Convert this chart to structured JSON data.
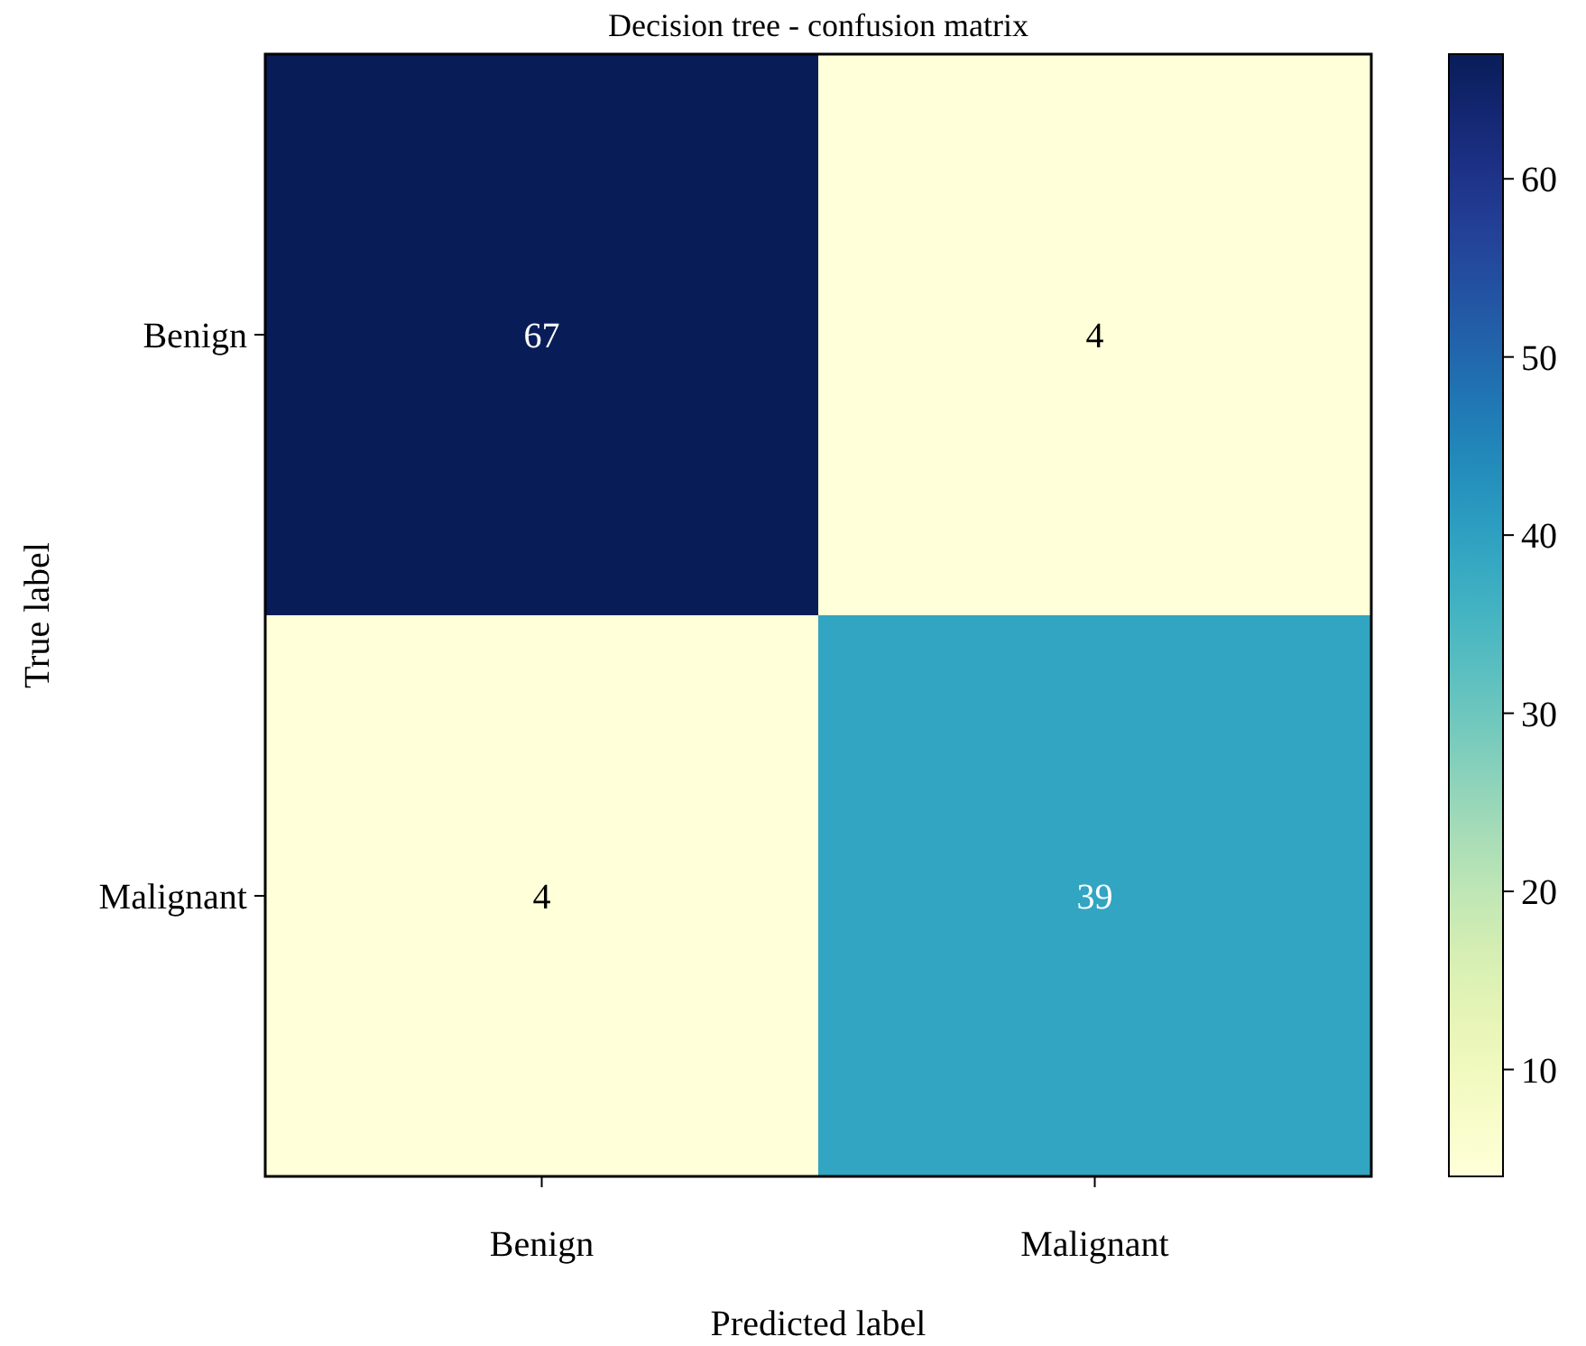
{
  "chart_data": {
    "type": "heatmap",
    "title": "Decision tree - confusion matrix",
    "xlabel": "Predicted label",
    "ylabel": "True label",
    "categories": [
      "Benign",
      "Malignant"
    ],
    "y_categories": [
      "Benign",
      "Malignant"
    ],
    "cells": [
      [
        67,
        4
      ],
      [
        4,
        39
      ]
    ],
    "data_labels": true,
    "clim": [
      4,
      67
    ],
    "cticks": [
      10,
      20,
      30,
      40,
      50,
      60
    ]
  }
}
